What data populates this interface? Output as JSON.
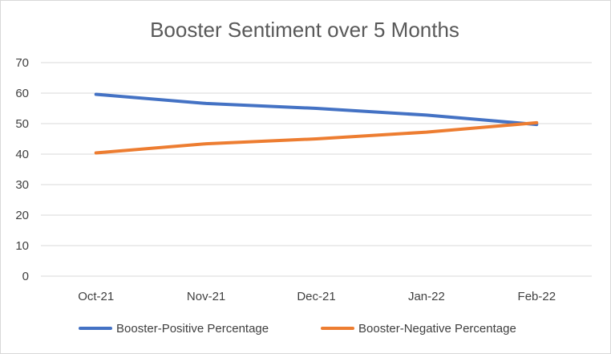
{
  "chart_data": {
    "type": "line",
    "title": "Booster Sentiment over 5 Months",
    "xlabel": "",
    "ylabel": "",
    "categories": [
      "Oct-21",
      "Nov-21",
      "Dec-21",
      "Jan-22",
      "Feb-22"
    ],
    "ylim": [
      0,
      70
    ],
    "yticks": [
      "0",
      "10",
      "20",
      "30",
      "40",
      "50",
      "60",
      "70"
    ],
    "grid": "horizontal",
    "legend_position": "bottom",
    "series": [
      {
        "name": "Booster-Positive Percentage",
        "color": "#4472c4",
        "values": [
          59.6,
          56.6,
          55.0,
          52.8,
          49.7
        ]
      },
      {
        "name": "Booster-Negative Percentage",
        "color": "#ed7d31",
        "values": [
          40.4,
          43.4,
          45.0,
          47.2,
          50.3
        ]
      }
    ]
  }
}
